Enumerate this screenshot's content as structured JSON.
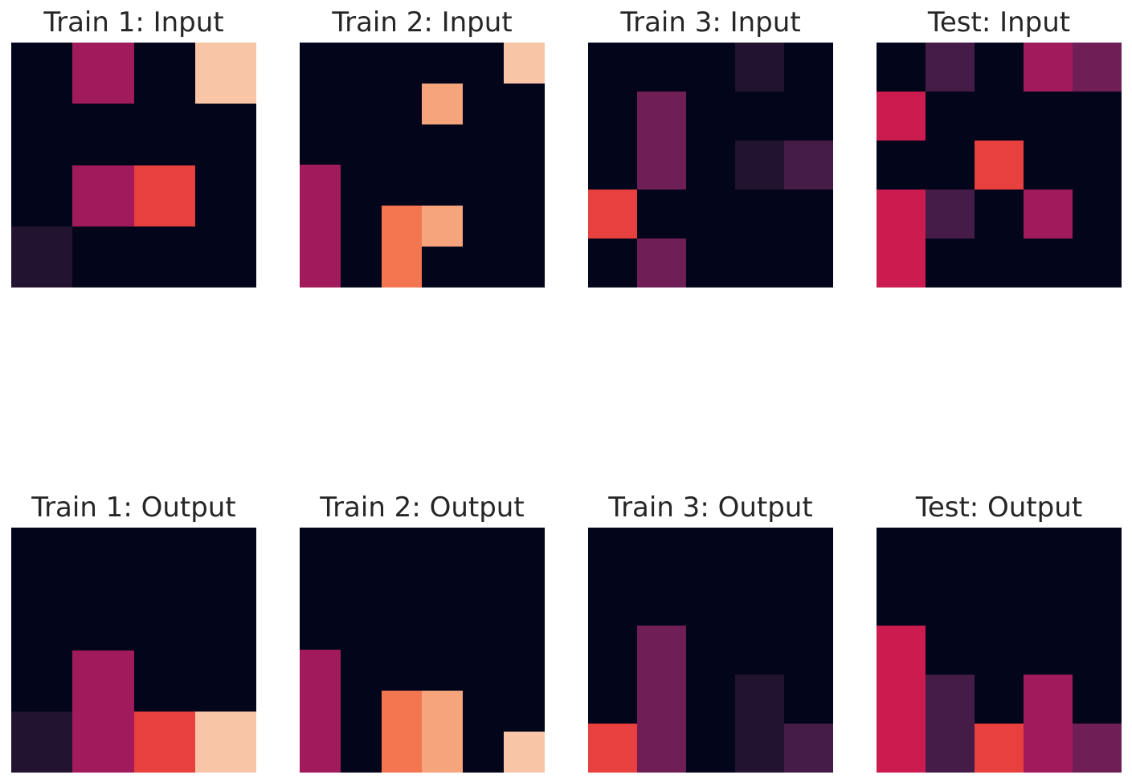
{
  "palette": {
    "0": "#03051a",
    "1": "#221331",
    "2": "#451c47",
    "3": "#6f1f56",
    "4": "#a11a5b",
    "5": "#cb1b4f",
    "6": "#e83f3f",
    "7": "#f37651",
    "8": "#f6a47b",
    "9": "#f8c6a6"
  },
  "panels": [
    {
      "title": "Train 1: Input",
      "grid": [
        [
          0,
          4,
          0,
          9
        ],
        [
          0,
          0,
          0,
          0
        ],
        [
          0,
          4,
          6,
          0
        ],
        [
          1,
          0,
          0,
          0
        ]
      ]
    },
    {
      "title": "Train 2: Input",
      "grid": [
        [
          0,
          0,
          0,
          0,
          0,
          9
        ],
        [
          0,
          0,
          0,
          8,
          0,
          0
        ],
        [
          0,
          0,
          0,
          0,
          0,
          0
        ],
        [
          4,
          0,
          0,
          0,
          0,
          0
        ],
        [
          4,
          0,
          7,
          8,
          0,
          0
        ],
        [
          4,
          0,
          7,
          0,
          0,
          0
        ]
      ]
    },
    {
      "title": "Train 3: Input",
      "grid": [
        [
          0,
          0,
          0,
          1,
          0
        ],
        [
          0,
          3,
          0,
          0,
          0
        ],
        [
          0,
          3,
          0,
          1,
          2
        ],
        [
          6,
          0,
          0,
          0,
          0
        ],
        [
          0,
          3,
          0,
          0,
          0
        ]
      ]
    },
    {
      "title": "Test: Input",
      "grid": [
        [
          0,
          2,
          0,
          4,
          3
        ],
        [
          5,
          0,
          0,
          0,
          0
        ],
        [
          0,
          0,
          6,
          0,
          0
        ],
        [
          5,
          2,
          0,
          4,
          0
        ],
        [
          5,
          0,
          0,
          0,
          0
        ]
      ]
    },
    {
      "title": "Train 1: Output",
      "grid": [
        [
          0,
          0,
          0,
          0
        ],
        [
          0,
          0,
          0,
          0
        ],
        [
          0,
          4,
          0,
          0
        ],
        [
          1,
          4,
          6,
          9
        ]
      ]
    },
    {
      "title": "Train 2: Output",
      "grid": [
        [
          0,
          0,
          0,
          0,
          0,
          0
        ],
        [
          0,
          0,
          0,
          0,
          0,
          0
        ],
        [
          0,
          0,
          0,
          0,
          0,
          0
        ],
        [
          4,
          0,
          0,
          0,
          0,
          0
        ],
        [
          4,
          0,
          7,
          8,
          0,
          0
        ],
        [
          4,
          0,
          7,
          8,
          0,
          9
        ]
      ]
    },
    {
      "title": "Train 3: Output",
      "grid": [
        [
          0,
          0,
          0,
          0,
          0
        ],
        [
          0,
          0,
          0,
          0,
          0
        ],
        [
          0,
          3,
          0,
          0,
          0
        ],
        [
          0,
          3,
          0,
          1,
          0
        ],
        [
          6,
          3,
          0,
          1,
          2
        ]
      ]
    },
    {
      "title": "Test: Output",
      "grid": [
        [
          0,
          0,
          0,
          0,
          0
        ],
        [
          0,
          0,
          0,
          0,
          0
        ],
        [
          5,
          0,
          0,
          0,
          0
        ],
        [
          5,
          2,
          0,
          4,
          0
        ],
        [
          5,
          2,
          6,
          4,
          3
        ]
      ]
    }
  ]
}
